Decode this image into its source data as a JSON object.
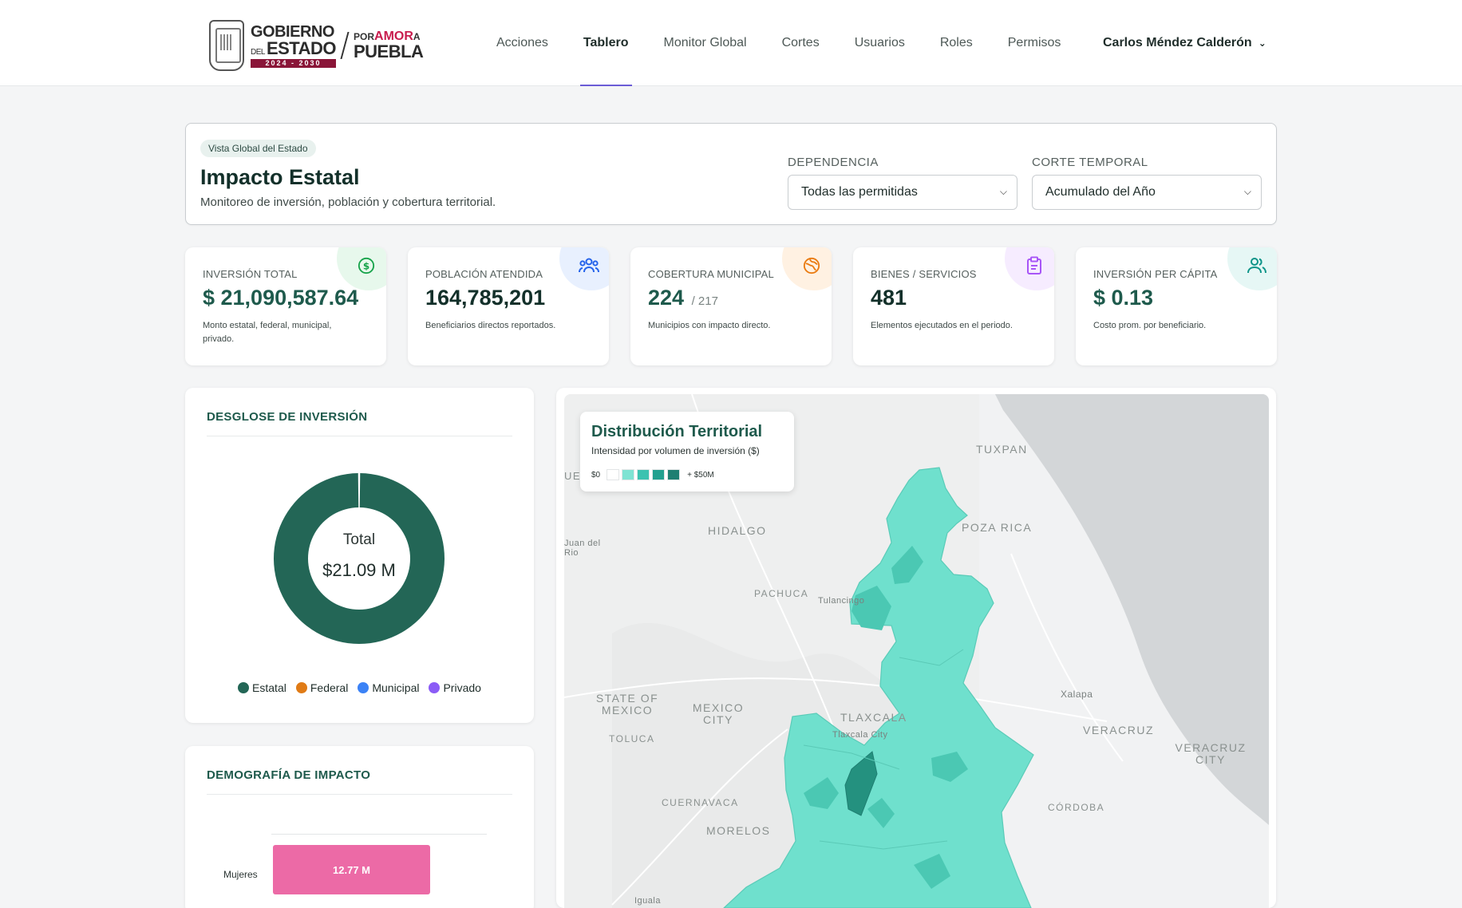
{
  "header": {
    "logo": {
      "gov_line1": "GOBIERNO",
      "gov_line2_small": "DEL",
      "gov_line2": "ESTADO",
      "gov_years": "2024 - 2030",
      "amor_prefix": "POR",
      "amor_word": "AMOR",
      "amor_suffix": "A",
      "amor_line2": "PUEBLA"
    },
    "nav": [
      {
        "label": "Acciones"
      },
      {
        "label": "Tablero",
        "active": true
      },
      {
        "label": "Monitor Global"
      },
      {
        "label": "Cortes"
      },
      {
        "label": "Usuarios"
      },
      {
        "label": "Roles"
      },
      {
        "label": "Permisos"
      }
    ],
    "user_name": "Carlos Méndez Calderón"
  },
  "hero": {
    "pill": "Vista Global del Estado",
    "title": "Impacto Estatal",
    "subtitle": "Monitoreo de inversión, población y cobertura territorial.",
    "filters": {
      "dependencia_label": "DEPENDENCIA",
      "dependencia_value": "Todas las permitidas",
      "corte_label": "CORTE TEMPORAL",
      "corte_value": "Acumulado del Año"
    }
  },
  "kpis": [
    {
      "label": "INVERSIÓN TOTAL",
      "value": "$ 21,090,587.64",
      "value_sub": "",
      "desc": "Monto estatal, federal, municipal, privado.",
      "icon": "dollar-icon",
      "color": "#16a34a",
      "blob": "#e7f8ec"
    },
    {
      "label": "POBLACIÓN ATENDIDA",
      "value": "164,785,201",
      "value_sub": "",
      "desc": "Beneficiarios directos reportados.",
      "icon": "people-icon",
      "color": "#2563eb",
      "blob": "#e8f0fe"
    },
    {
      "label": "COBERTURA MUNICIPAL",
      "value": "224",
      "value_sub": "/ 217",
      "desc": "Municipios con impacto directo.",
      "icon": "globe-icon",
      "color": "#ea7a10",
      "blob": "#fff1e2"
    },
    {
      "label": "BIENES / SERVICIOS",
      "value": "481",
      "value_sub": "",
      "desc": "Elementos ejecutados en el periodo.",
      "icon": "clipboard-icon",
      "color": "#a855f7",
      "blob": "#f6ecff"
    },
    {
      "label": "INVERSIÓN PER CÁPITA",
      "value": "$ 0.13",
      "value_sub": "",
      "desc": "Costo prom. por beneficiario.",
      "icon": "users-icon",
      "color": "#0d9488",
      "blob": "#e6f7f5"
    }
  ],
  "investment": {
    "title": "DESGLOSE DE INVERSIÓN",
    "center_label": "Total",
    "center_value": "$21.09 M",
    "chart_data": {
      "type": "pie",
      "categories": [
        "Estatal",
        "Federal",
        "Municipal",
        "Privado"
      ],
      "values": [
        21.09,
        0,
        0,
        0
      ],
      "colors": [
        "#236656",
        "#e07b16",
        "#3b82f6",
        "#8b5cf6"
      ],
      "legend": "bottom"
    }
  },
  "demography": {
    "title": "DEMOGRAFÍA DE IMPACTO",
    "chart_data": {
      "type": "bar",
      "orientation": "horizontal",
      "categories": [
        "Mujeres"
      ],
      "values": [
        12.77
      ],
      "data_labels": [
        "12.77 M"
      ],
      "xlim": [
        0,
        17.5
      ],
      "colors": [
        "#ec6aa6"
      ]
    }
  },
  "map": {
    "title": "Distribución Territorial",
    "subtitle": "Intensidad por volumen de inversión ($)",
    "scale_min": "$0",
    "scale_max": "+ $50M",
    "scale_colors": [
      "#ffffff",
      "#7fe3d3",
      "#3cc2b0",
      "#23a08f",
      "#1f7f72"
    ],
    "places": [
      "TUXPAN",
      "POZA RICA",
      "HIDALGO",
      "Juan del Rio",
      "PACHUCA",
      "Tulancingo",
      "STATE OF MEXICO",
      "MEXICO CITY",
      "TLAXCALA",
      "Tlaxcala City",
      "Xalapa",
      "VERACRUZ",
      "VERACRUZ CITY",
      "TOLUCA",
      "CUERNAVACA",
      "MORELOS",
      "CÓRDOBA",
      "Iguala",
      "UE"
    ]
  }
}
